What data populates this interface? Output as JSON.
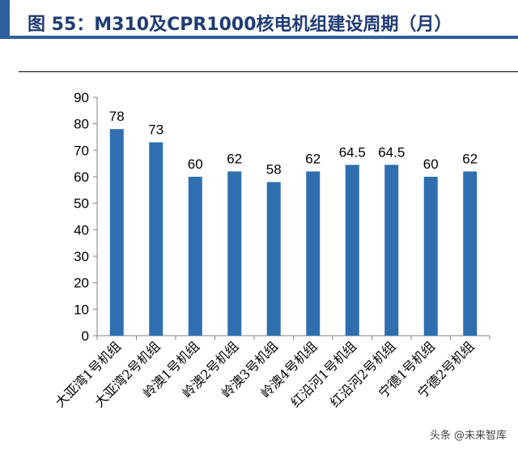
{
  "header": {
    "figure_title": "图 55：M310及CPR1000核电机组建设周期（月）"
  },
  "watermark": "头条 @未来智库",
  "chart_data": {
    "type": "bar",
    "title": "",
    "xlabel": "",
    "ylabel": "",
    "ylim": [
      0,
      90
    ],
    "yticks": [
      0,
      10,
      20,
      30,
      40,
      50,
      60,
      70,
      80,
      90
    ],
    "grid": false,
    "legend": "none",
    "bar_color": "#2f6fb0",
    "categories": [
      "大亚湾1号机组",
      "大亚湾2号机组",
      "岭澳1号机组",
      "岭澳2号机组",
      "岭澳3号机组",
      "岭澳4号机组",
      "红沿河1号机组",
      "红沿河2号机组",
      "宁德1号机组",
      "宁德2号机组"
    ],
    "values": [
      78,
      73,
      60,
      62,
      58,
      62,
      64.5,
      64.5,
      60,
      62
    ],
    "value_labels": [
      "78",
      "73",
      "60",
      "62",
      "58",
      "62",
      "64.5",
      "64.5",
      "60",
      "62"
    ]
  }
}
